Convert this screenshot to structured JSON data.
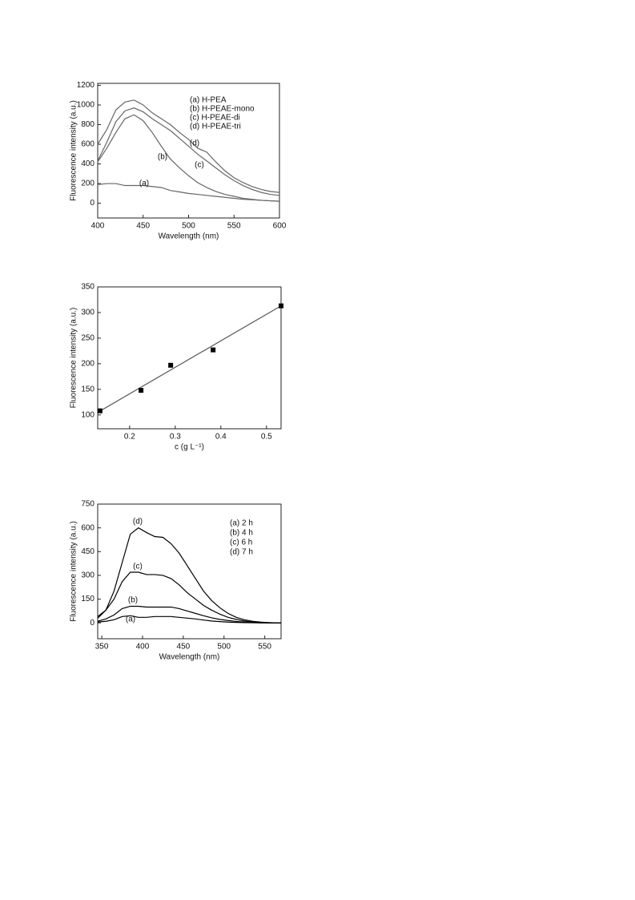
{
  "chart_data": [
    {
      "type": "line",
      "xlabel": "Wavelength (nm)",
      "ylabel": "Fluorescence intensity (a.u.)",
      "xlim": [
        400,
        600
      ],
      "ylim": [
        -150,
        1220
      ],
      "xticks": [
        400,
        450,
        500,
        550,
        600
      ],
      "yticks": [
        0,
        200,
        400,
        600,
        800,
        1000,
        1200
      ],
      "x": [
        400,
        410,
        420,
        430,
        440,
        450,
        460,
        470,
        480,
        490,
        500,
        510,
        520,
        530,
        540,
        550,
        560,
        570,
        580,
        590,
        600
      ],
      "series": [
        {
          "name": "(a) H-PEA",
          "color": "#666666",
          "values": [
            190,
            200,
            200,
            180,
            180,
            180,
            170,
            160,
            130,
            115,
            100,
            90,
            80,
            70,
            60,
            50,
            40,
            35,
            30,
            25,
            20
          ]
        },
        {
          "name": "(b) H-PEAE-mono",
          "color": "#666666",
          "values": [
            420,
            560,
            720,
            860,
            900,
            840,
            720,
            580,
            450,
            360,
            280,
            210,
            160,
            120,
            90,
            70,
            50,
            40,
            30,
            25,
            20
          ]
        },
        {
          "name": "(c) H-PEAE-di",
          "color": "#666666",
          "values": [
            430,
            620,
            830,
            940,
            970,
            930,
            860,
            800,
            740,
            660,
            580,
            500,
            430,
            360,
            290,
            230,
            180,
            140,
            110,
            90,
            80
          ]
        },
        {
          "name": "(d) H-PEAE-tri",
          "color": "#666666",
          "values": [
            600,
            750,
            950,
            1030,
            1050,
            1000,
            920,
            860,
            800,
            720,
            650,
            560,
            520,
            420,
            330,
            260,
            210,
            170,
            140,
            120,
            110
          ]
        }
      ],
      "annotations": [
        "(a)",
        "(b)",
        "(c)",
        "(d)"
      ]
    },
    {
      "type": "scatter",
      "xlabel": "c (g L⁻¹)",
      "ylabel": "Fluorescence intensity (a.u.)",
      "xlim": [
        0.13,
        0.532
      ],
      "ylim": [
        73,
        350
      ],
      "xticks": [
        0.2,
        0.3,
        0.4,
        0.5
      ],
      "yticks": [
        100,
        150,
        200,
        250,
        300,
        350
      ],
      "x": [
        0.135,
        0.225,
        0.29,
        0.383,
        0.532
      ],
      "values": [
        108,
        148,
        197,
        227,
        313
      ],
      "color": "#000000",
      "fit_x": [
        0.13,
        0.532
      ],
      "fit_y": [
        105,
        313
      ],
      "fit_color": "#555555"
    },
    {
      "type": "line",
      "xlabel": "Wavelength (nm)",
      "ylabel": "Fluorescence intensity (a.u.)",
      "xlim": [
        345,
        570
      ],
      "ylim": [
        -100,
        750
      ],
      "xticks": [
        350,
        400,
        450,
        500,
        550
      ],
      "yticks": [
        0,
        150,
        300,
        450,
        600,
        750
      ],
      "x": [
        345,
        355,
        365,
        375,
        385,
        395,
        405,
        415,
        425,
        435,
        445,
        455,
        465,
        475,
        485,
        495,
        505,
        515,
        525,
        535,
        545,
        555,
        565,
        570
      ],
      "series": [
        {
          "name": "(a)  2 h",
          "color": "#000000",
          "values": [
            5,
            10,
            20,
            40,
            45,
            35,
            35,
            40,
            40,
            40,
            35,
            30,
            25,
            18,
            12,
            8,
            5,
            3,
            2,
            1,
            0,
            0,
            0,
            0
          ]
        },
        {
          "name": "(b)  4 h",
          "color": "#000000",
          "values": [
            10,
            25,
            50,
            90,
            105,
            105,
            100,
            100,
            100,
            100,
            90,
            75,
            60,
            45,
            32,
            22,
            15,
            9,
            5,
            3,
            1,
            0,
            0,
            0
          ]
        },
        {
          "name": "(c)  6 h",
          "color": "#000000",
          "values": [
            40,
            80,
            150,
            260,
            320,
            320,
            305,
            305,
            300,
            280,
            240,
            190,
            150,
            110,
            80,
            55,
            35,
            22,
            12,
            6,
            3,
            1,
            0,
            0
          ]
        },
        {
          "name": "(d)  7 h",
          "color": "#000000",
          "values": [
            30,
            80,
            200,
            380,
            560,
            600,
            570,
            545,
            540,
            500,
            440,
            360,
            280,
            200,
            140,
            95,
            60,
            35,
            20,
            10,
            5,
            2,
            0,
            0
          ]
        }
      ],
      "annotations": [
        "(a)",
        "(b)",
        "(c)",
        "(d)"
      ]
    }
  ]
}
